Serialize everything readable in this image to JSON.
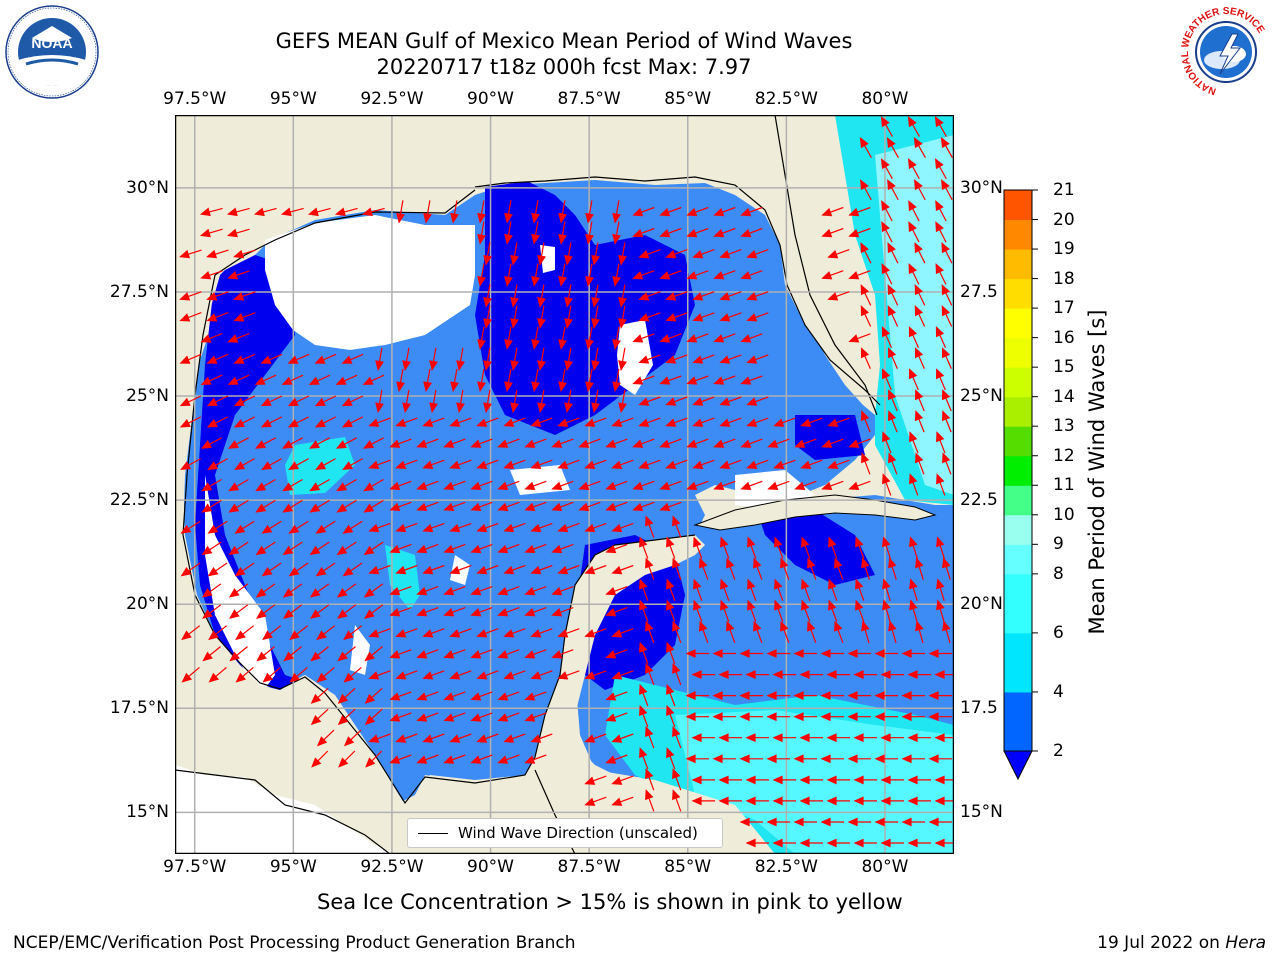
{
  "title": {
    "line1": "GEFS MEAN Gulf of Mexico Mean Period of Wind Waves",
    "line2": "20220717 t18z 000h fcst   Max: 7.97"
  },
  "map": {
    "lon_ticks_top": [
      "97.5°W",
      "95°W",
      "92.5°W",
      "90°W",
      "87.5°W",
      "85°W",
      "82.5°W",
      "80°W"
    ],
    "lon_ticks_bottom": [
      "97.5°W",
      "95°W",
      "92.5°W",
      "90°W",
      "87.5°W",
      "85°W",
      "82.5°W",
      "80°W"
    ],
    "lat_ticks_left": [
      "30°N",
      "27.5°N",
      "25°N",
      "22.5°N",
      "20°N",
      "17.5°N",
      "15°N"
    ],
    "lat_ticks_right": [
      "30°N",
      "27.5",
      "25°N",
      "22.5",
      "20°N",
      "17.5",
      "15°N"
    ],
    "lon_values": [
      -97.5,
      -95,
      -92.5,
      -90,
      -87.5,
      -85,
      -82.5,
      -80
    ],
    "lat_values": [
      30,
      27.5,
      25,
      22.5,
      20,
      17.5,
      15
    ],
    "extent": {
      "lon": [
        -98,
        -78.25
      ],
      "lat": [
        14,
        31.75
      ]
    },
    "colors": {
      "land": "#efedd9",
      "coast": "#000000",
      "grid": "#b0b0b0",
      "arrow": "#ff0000",
      "no_data": "#ffffff"
    }
  },
  "legend": {
    "label": "Wind Wave Direction (unscaled)"
  },
  "colorbar": {
    "label": "Mean Period of Wind Waves [s]",
    "ticks": [
      "2",
      "4",
      "6",
      "8",
      "9",
      "10",
      "11",
      "12",
      "13",
      "14",
      "15",
      "16",
      "17",
      "18",
      "19",
      "20",
      "21"
    ],
    "levels": [
      2,
      4,
      6,
      8,
      9,
      10,
      11,
      12,
      13,
      14,
      15,
      16,
      17,
      18,
      19,
      20,
      21
    ],
    "colors": [
      "#0066ff",
      "#00e6ff",
      "#33ffff",
      "#66ffff",
      "#99ffee",
      "#44ff88",
      "#00ee00",
      "#55dd00",
      "#aaee00",
      "#ccff00",
      "#eeff00",
      "#ffff00",
      "#ffdd00",
      "#ffbb00",
      "#ff8800",
      "#ff5500",
      "#ff2200",
      "#ff0000"
    ],
    "under_color": "#0000ff",
    "extend": "min"
  },
  "subtitle": "Sea Ice Concentration > 15% is shown in pink to yellow",
  "footer": {
    "left": "NCEP/EMC/Verification Post Processing Product Generation Branch",
    "date": "19 Jul 2022 on ",
    "host": "Hera"
  },
  "logos": {
    "noaa": {
      "text": "NOAA",
      "ring": "NATIONAL OCEANIC AND ATMOSPHERIC ADMINISTRATION · U.S. DEPARTMENT OF COMMERCE"
    },
    "nws": {
      "ring": "NATIONAL WEATHER SERVICE"
    }
  }
}
